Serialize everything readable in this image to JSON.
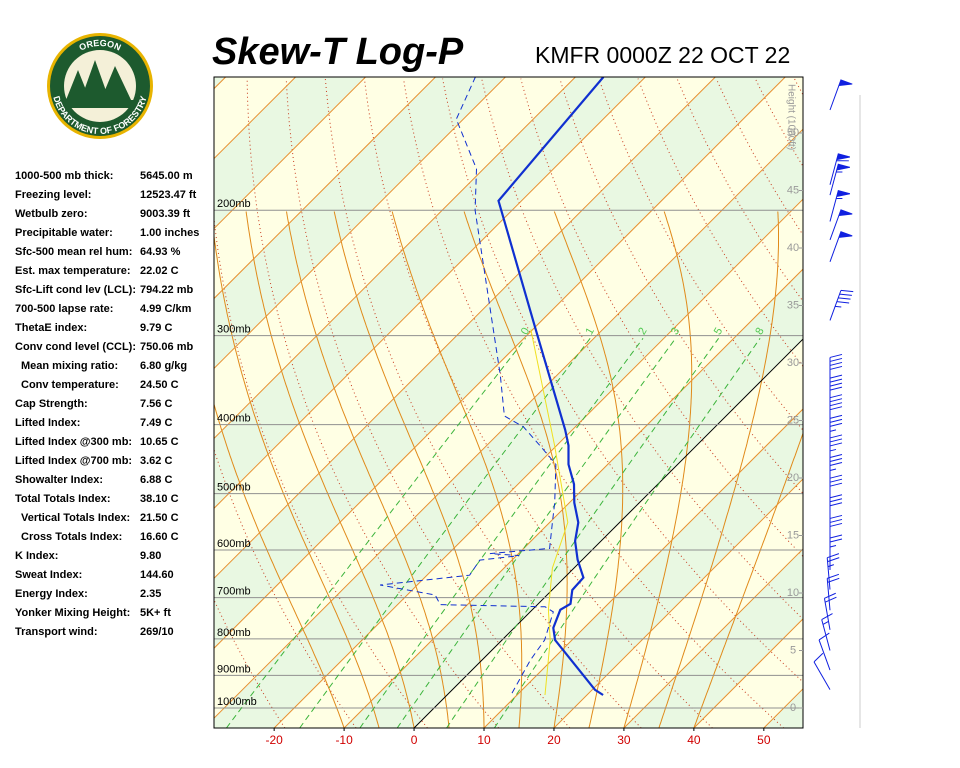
{
  "logo": {
    "top": "OREGON",
    "bottom": "DEPARTMENT OF FORESTRY"
  },
  "stats": [
    [
      "1000-500 mb thick:",
      "5645.00 m"
    ],
    [
      "Freezing level:",
      "12523.47 ft"
    ],
    [
      "Wetbulb zero:",
      "9003.39 ft"
    ],
    [
      "Precipitable water:",
      "1.00 inches"
    ],
    [
      "Sfc-500 mean rel hum:",
      "64.93 %"
    ],
    [
      "Est. max temperature:",
      "22.02 C"
    ],
    [
      "Sfc-Lift cond lev (LCL):",
      "794.22 mb"
    ],
    [
      "700-500 lapse rate:",
      "4.99 C/km"
    ],
    [
      "ThetaE index:",
      "9.79 C"
    ],
    [
      "Conv cond level (CCL):",
      "750.06 mb"
    ],
    [
      "Mean mixing ratio:",
      "6.80 g/kg"
    ],
    [
      "Conv temperature:",
      "24.50 C"
    ],
    [
      "Cap Strength:",
      "7.56 C"
    ],
    [
      "Lifted Index:",
      "7.49 C"
    ],
    [
      "Lifted Index @300 mb:",
      "10.65 C"
    ],
    [
      "Lifted Index @700 mb:",
      "3.62 C"
    ],
    [
      "Showalter Index:",
      "6.88 C"
    ],
    [
      "Total Totals Index:",
      "38.10 C"
    ],
    [
      "Vertical Totals Index:",
      "21.50 C"
    ],
    [
      "Cross Totals Index:",
      "16.60 C"
    ],
    [
      "K Index:",
      "9.80"
    ],
    [
      "Sweat Index:",
      "144.60"
    ],
    [
      "Energy Index:",
      "2.35"
    ],
    [
      "Yonker Mixing Height:",
      "5K+ ft"
    ],
    [
      "Transport wind:",
      "269/10"
    ]
  ],
  "chart_data": {
    "type": "skewt",
    "title": "Skew-T Log-P",
    "subtitle": "KMFR 0000Z 22 OCT 22",
    "xlim": [
      -28.6,
      55.6
    ],
    "xticks": [
      -20,
      -10,
      0,
      10,
      20,
      30,
      40,
      50
    ],
    "ylim": [
      1067,
      130
    ],
    "ylog": true,
    "yticks": [
      {
        "value": 1000,
        "label": "1000mb"
      },
      {
        "value": 900,
        "label": "900mb"
      },
      {
        "value": 800,
        "label": "800mb"
      },
      {
        "value": 700,
        "label": "700mb"
      },
      {
        "value": 600,
        "label": "600mb"
      },
      {
        "value": 500,
        "label": "500mb"
      },
      {
        "value": 400,
        "label": "400mb"
      },
      {
        "value": 300,
        "label": "300mb"
      },
      {
        "value": 200,
        "label": "200mb"
      }
    ],
    "y2label": "Height (1000ft)",
    "y2lim": [
      -1.74,
      54.87
    ],
    "y2ticks": [
      0,
      5,
      10,
      15,
      20,
      25,
      30,
      35,
      40,
      45,
      50
    ],
    "mixing_ratios": [
      {
        "value": 0.4,
        "label": "0"
      },
      1,
      2,
      3,
      5,
      8
    ],
    "series": [
      {
        "color": "#f0e020",
        "dash": false,
        "width": 1,
        "pressure": [
          959,
          803,
          728,
          636,
          549,
          428,
          294
        ],
        "values": [
          14,
          6.9,
          2.3,
          -3.1,
          -7.4,
          -20.3,
          -40.3
        ]
      },
      {
        "color": "#1030d0",
        "dash": true,
        "width": 1,
        "pressure": [
          953,
          856,
          803,
          733,
          721,
          716,
          694,
          672,
          651,
          620,
          611,
          607,
          597,
          549,
          515,
          455,
          428,
          403,
          389,
          341,
          200,
          175,
          149,
          130
        ],
        "values": [
          9.0,
          6.9,
          6.1,
          3.3,
          1.4,
          -13.9,
          -16,
          -25.3,
          -13.9,
          -14.6,
          -9.6,
          -14.1,
          -6.3,
          -9.6,
          -12.1,
          -17.4,
          -22.4,
          -27.4,
          -31.7,
          -38.1,
          -65.3,
          -71,
          -81,
          -84.3
        ]
      },
      {
        "color": "#1030d0",
        "dash": false,
        "width": 2.2,
        "pressure": [
          959,
          943,
          803,
          772,
          728,
          714,
          683,
          656,
          619,
          583,
          549,
          515,
          485,
          455,
          428,
          407,
          294,
          194,
          130
        ],
        "values": [
          22.3,
          20.4,
          7.6,
          5.6,
          4.0,
          4.6,
          2.9,
          2.7,
          -0.7,
          -3.7,
          -5.9,
          -9.3,
          -12,
          -15.6,
          -18.3,
          -21,
          -39.6,
          -63.3,
          -66
        ]
      }
    ],
    "winds": {
      "color": "#1020e0",
      "heights": [
        1.6,
        3.3,
        5,
        6.8,
        8.5,
        10.3,
        12,
        13.7,
        15.5,
        17.2,
        19,
        20.7,
        22.4,
        24.2,
        25.9,
        27.7,
        33.7,
        38.8,
        40.7,
        42.3,
        44.6,
        45.5,
        52
      ],
      "speeds": [
        10,
        10,
        15,
        20,
        20,
        25,
        25,
        30,
        30,
        30,
        35,
        35,
        35,
        40,
        40,
        40,
        45,
        50,
        50,
        55,
        55,
        60,
        50
      ],
      "directions": [
        330,
        340,
        345,
        350,
        355,
        355,
        0,
        0,
        0,
        0,
        0,
        0,
        0,
        0,
        0,
        0,
        20,
        20,
        20,
        15,
        15,
        15,
        20
      ]
    }
  }
}
